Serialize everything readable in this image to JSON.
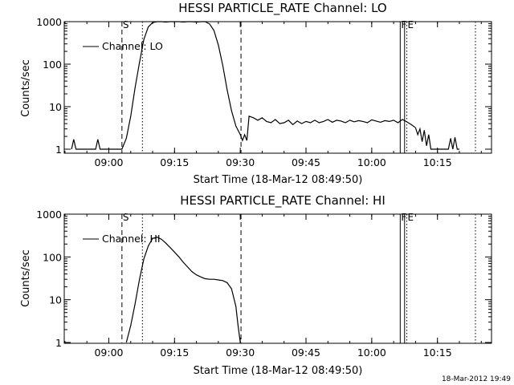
{
  "timestamp": "18-Mar-2012 19:49",
  "chart_data": [
    {
      "type": "line",
      "title": "HESSI PARTICLE_RATE Channel: LO",
      "xlabel": "Start Time (18-Mar-12 08:49:50)",
      "ylabel": "Counts/sec",
      "yscale": "log",
      "ylim": [
        1,
        1000
      ],
      "xlim": [
        "08:49:50",
        "10:27:20"
      ],
      "x_ticks": [
        "09:00",
        "09:15",
        "09:30",
        "09:45",
        "10:00",
        "10:15"
      ],
      "y_ticks": [
        "1",
        "10",
        "100",
        "1000"
      ],
      "legend": {
        "label": "Channel: LO",
        "placement": "top-left"
      },
      "markers": [
        {
          "label": "S",
          "time": "09:03:00",
          "style": "dashed"
        },
        {
          "label": "",
          "time": "09:07:40",
          "style": "dotted"
        },
        {
          "label": "",
          "time": "09:30:10",
          "style": "dashed"
        },
        {
          "label": "F",
          "time": "10:06:30",
          "style": "solid"
        },
        {
          "label": "",
          "time": "10:07:30",
          "style": "solid"
        },
        {
          "label": "E",
          "time": "10:08:00",
          "style": "dotted"
        },
        {
          "label": "",
          "time": "10:23:40",
          "style": "dotted"
        }
      ],
      "series": [
        {
          "name": "Channel: LO",
          "x": [
            "08:51:30",
            "08:52:00",
            "08:52:30",
            "08:57:00",
            "08:57:30",
            "08:58:00",
            "09:03:00",
            "09:04:00",
            "09:05:00",
            "09:06:00",
            "09:07:00",
            "09:08:00",
            "09:09:00",
            "09:10:00",
            "09:11:00",
            "09:12:00",
            "09:13:00",
            "09:14:00",
            "09:15:00",
            "09:16:00",
            "09:17:00",
            "09:18:00",
            "09:19:00",
            "09:20:00",
            "09:21:00",
            "09:22:00",
            "09:23:00",
            "09:24:00",
            "09:25:00",
            "09:26:00",
            "09:27:00",
            "09:28:00",
            "09:29:00",
            "09:30:00",
            "09:30:30",
            "09:31:00",
            "09:31:30",
            "09:32:00",
            "09:33:00",
            "09:34:00",
            "09:35:00",
            "09:36:00",
            "09:37:00",
            "09:38:00",
            "09:39:00",
            "09:40:00",
            "09:41:00",
            "09:42:00",
            "09:43:00",
            "09:44:00",
            "09:45:00",
            "09:46:00",
            "09:47:00",
            "09:48:00",
            "09:49:00",
            "09:50:00",
            "09:51:00",
            "09:52:00",
            "09:53:00",
            "09:54:00",
            "09:55:00",
            "09:56:00",
            "09:57:00",
            "09:58:00",
            "09:59:00",
            "10:00:00",
            "10:01:00",
            "10:02:00",
            "10:03:00",
            "10:04:00",
            "10:05:00",
            "10:06:00",
            "10:06:30",
            "10:07:00",
            "10:08:00",
            "10:09:00",
            "10:10:00",
            "10:10:30",
            "10:11:00",
            "10:11:30",
            "10:12:00",
            "10:12:30",
            "10:13:00",
            "10:13:30",
            "10:17:30",
            "10:18:00",
            "10:18:30",
            "10:19:00",
            "10:19:30",
            "10:20:00"
          ],
          "values": [
            1,
            1.7,
            1,
            1,
            1.7,
            1,
            1,
            1.8,
            6,
            28,
            110,
            380,
            750,
            950,
            1000,
            1000,
            980,
            1000,
            1000,
            1000,
            980,
            1000,
            1000,
            980,
            1000,
            1000,
            880,
            620,
            280,
            95,
            25,
            8,
            3.5,
            2.2,
            1.6,
            2.2,
            1.6,
            6,
            5.5,
            4.8,
            5.5,
            4.5,
            4.2,
            5,
            4,
            4.2,
            4.8,
            3.8,
            4.6,
            4,
            4.5,
            4.2,
            4.8,
            4.2,
            4.5,
            5,
            4.3,
            4.8,
            4.6,
            4.2,
            4.8,
            4.4,
            4.7,
            4.5,
            4.2,
            4.9,
            4.6,
            4.3,
            4.7,
            4.5,
            4.8,
            4.2,
            4.6,
            5,
            4.4,
            3.8,
            3.2,
            2.2,
            3,
            1.5,
            2.8,
            1.2,
            2.2,
            1,
            1,
            1.8,
            1,
            1.9,
            1,
            1
          ]
        }
      ]
    },
    {
      "type": "line",
      "title": "HESSI PARTICLE_RATE Channel: HI",
      "xlabel": "Start Time (18-Mar-12 08:49:50)",
      "ylabel": "Counts/sec",
      "yscale": "log",
      "ylim": [
        1,
        1000
      ],
      "xlim": [
        "08:49:50",
        "10:27:20"
      ],
      "x_ticks": [
        "09:00",
        "09:15",
        "09:30",
        "09:45",
        "10:00",
        "10:15"
      ],
      "y_ticks": [
        "1",
        "10",
        "100",
        "1000"
      ],
      "legend": {
        "label": "Channel: HI",
        "placement": "top-left"
      },
      "markers": [
        {
          "label": "S",
          "time": "09:03:00",
          "style": "dashed"
        },
        {
          "label": "",
          "time": "09:07:40",
          "style": "dotted"
        },
        {
          "label": "",
          "time": "09:30:10",
          "style": "dashed"
        },
        {
          "label": "F",
          "time": "10:06:30",
          "style": "solid"
        },
        {
          "label": "",
          "time": "10:07:30",
          "style": "solid"
        },
        {
          "label": "E",
          "time": "10:08:00",
          "style": "dotted"
        },
        {
          "label": "",
          "time": "10:23:40",
          "style": "dotted"
        }
      ],
      "series": [
        {
          "name": "Channel: HI",
          "x": [
            "09:04:00",
            "09:05:00",
            "09:06:00",
            "09:07:00",
            "09:08:00",
            "09:09:00",
            "09:10:00",
            "09:11:00",
            "09:12:00",
            "09:13:00",
            "09:14:00",
            "09:15:00",
            "09:16:00",
            "09:17:00",
            "09:18:00",
            "09:19:00",
            "09:20:00",
            "09:21:00",
            "09:22:00",
            "09:23:00",
            "09:24:00",
            "09:25:00",
            "09:26:00",
            "09:27:00",
            "09:28:00",
            "09:29:00",
            "09:29:30",
            "09:30:00"
          ],
          "values": [
            1,
            2.5,
            8,
            30,
            90,
            180,
            270,
            290,
            260,
            210,
            165,
            130,
            100,
            75,
            58,
            45,
            38,
            34,
            31,
            30,
            30,
            29,
            28,
            25,
            18,
            7,
            2.5,
            1
          ]
        }
      ]
    }
  ]
}
